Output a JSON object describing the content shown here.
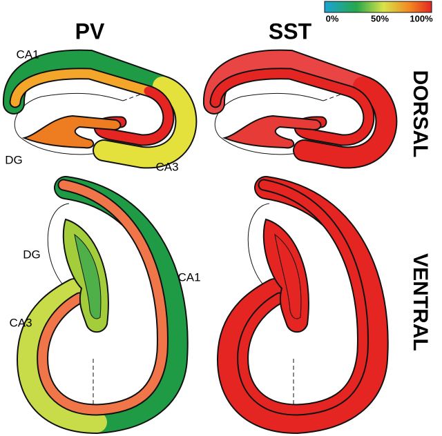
{
  "columns": [
    "PV",
    "SST"
  ],
  "rows": [
    "DORSAL",
    "VENTRAL"
  ],
  "colorbar": {
    "labels": [
      "0%",
      "50%",
      "100%"
    ]
  },
  "region_labels": {
    "dorsal": [
      "CA1",
      "DG",
      "CA3"
    ],
    "ventral": [
      "DG",
      "CA1",
      "CA3"
    ]
  }
}
